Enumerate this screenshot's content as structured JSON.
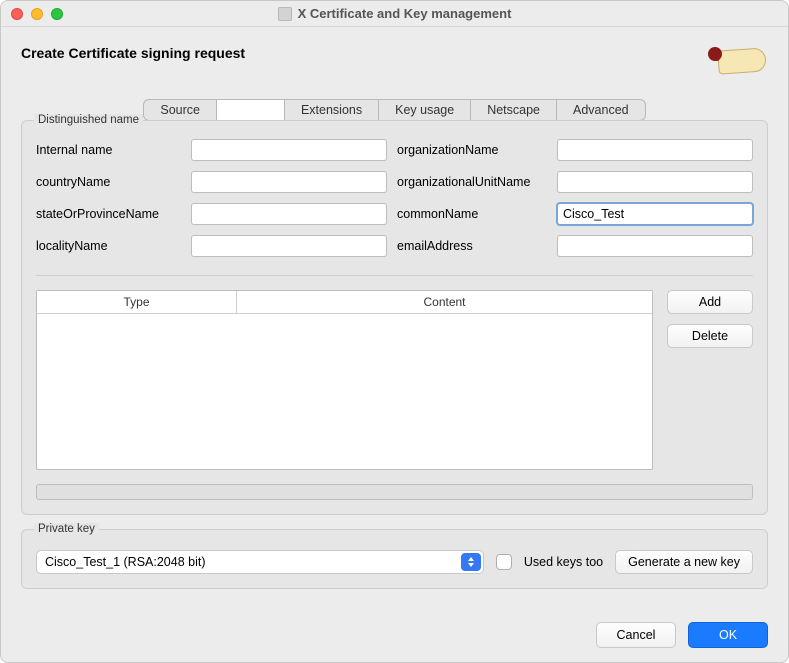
{
  "window": {
    "title": "X Certificate and Key management"
  },
  "header": {
    "title": "Create Certificate signing request"
  },
  "tabs": {
    "source": "Source",
    "extensions": "Extensions",
    "key_usage": "Key usage",
    "netscape": "Netscape",
    "advanced": "Advanced"
  },
  "dn": {
    "legend": "Distinguished name",
    "internalName_label": "Internal name",
    "internalName_value": "",
    "countryName_label": "countryName",
    "countryName_value": "",
    "stateOrProvinceName_label": "stateOrProvinceName",
    "stateOrProvinceName_value": "",
    "localityName_label": "localityName",
    "localityName_value": "",
    "organizationName_label": "organizationName",
    "organizationName_value": "",
    "organizationalUnitName_label": "organizationalUnitName",
    "organizationalUnitName_value": "",
    "commonName_label": "commonName",
    "commonName_value": "Cisco_Test",
    "emailAddress_label": "emailAddress",
    "emailAddress_value": ""
  },
  "attr_table": {
    "col_type": "Type",
    "col_content": "Content",
    "add_label": "Add",
    "delete_label": "Delete"
  },
  "private_key": {
    "legend": "Private key",
    "selected": "Cisco_Test_1 (RSA:2048 bit)",
    "used_keys_label": "Used keys too",
    "generate_label": "Generate a new key"
  },
  "footer": {
    "cancel": "Cancel",
    "ok": "OK"
  },
  "colors": {
    "window_bg": "#ececec",
    "group_bg": "#e6e6e6",
    "accent": "#1a7bff",
    "select_arrow_bg": "#3478f6",
    "focus_ring": "#7aa6d6"
  }
}
